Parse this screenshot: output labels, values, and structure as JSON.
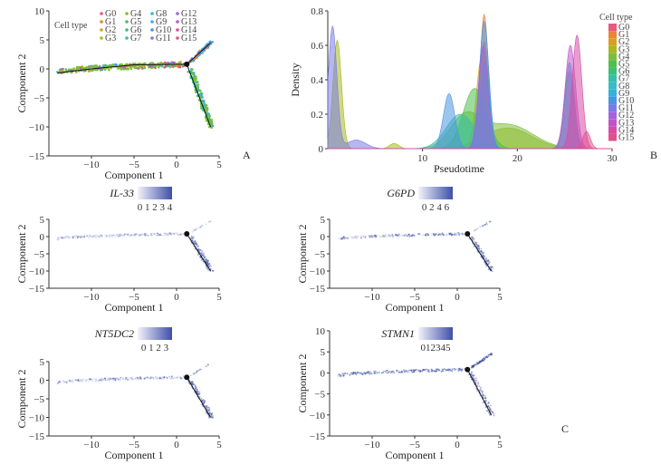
{
  "panels": {
    "a": "A",
    "b": "B",
    "c": "C"
  },
  "chart_data": [
    {
      "id": "A",
      "type": "scatter",
      "title": "",
      "xlabel": "Component 1",
      "ylabel": "Component 2",
      "xlim": [
        -15,
        5
      ],
      "ylim": [
        -15,
        10
      ],
      "xticks": [
        "-10",
        "-5",
        "0",
        "5"
      ],
      "yticks": [
        "10",
        "5",
        "0",
        "-5",
        "-10",
        "-15"
      ],
      "legend_title": "Cell type",
      "legend": [
        "G0",
        "G1",
        "G2",
        "G3",
        "G4",
        "G5",
        "G6",
        "G7",
        "G8",
        "G9",
        "G10",
        "G11",
        "G12",
        "G13",
        "G14",
        "G15"
      ],
      "trajectory": {
        "branch_point": [
          1.2,
          0.8
        ],
        "trunk": [
          [
            -14,
            -0.7
          ],
          [
            -10,
            0
          ],
          [
            -5,
            0.7
          ],
          [
            1.2,
            0.8
          ]
        ],
        "upper": [
          [
            1.2,
            0.8
          ],
          [
            4,
            4.5
          ]
        ],
        "lower": [
          [
            1.2,
            0.8
          ],
          [
            4,
            -10
          ]
        ]
      }
    },
    {
      "id": "B",
      "type": "area",
      "title": "",
      "xlabel": "Pseudotime",
      "ylabel": "Density",
      "xlim": [
        0,
        30
      ],
      "ylim": [
        0,
        0.8
      ],
      "xticks": [
        "10",
        "20",
        "30"
      ],
      "yticks": [
        "0.8",
        "0.6",
        "0.4",
        "0.2",
        "0"
      ],
      "legend_title": "Cell type",
      "series": [
        {
          "name": "G0",
          "peaks": [
            [
              16.5,
              0.62,
              0.5
            ]
          ]
        },
        {
          "name": "G1",
          "peaks": [
            [
              16.5,
              0.78,
              0.45
            ]
          ]
        },
        {
          "name": "G2",
          "peaks": [
            [
              16.3,
              0.55,
              0.6
            ]
          ]
        },
        {
          "name": "G3",
          "peaks": [
            [
              1,
              0.63,
              0.45
            ],
            [
              7,
              0.03,
              0.5
            ],
            [
              19,
              0.12,
              2.5
            ]
          ]
        },
        {
          "name": "G4",
          "peaks": [
            [
              14.5,
              0.18,
              1.6
            ],
            [
              19,
              0.14,
              2.6
            ]
          ]
        },
        {
          "name": "G5",
          "peaks": [
            [
              15.5,
              0.35,
              1.2
            ]
          ]
        },
        {
          "name": "G6",
          "peaks": [
            [
              25.5,
              0.45,
              0.5
            ]
          ]
        },
        {
          "name": "G7",
          "peaks": [
            [
              14,
              0.2,
              1.5
            ]
          ]
        },
        {
          "name": "G8",
          "peaks": [
            [
              16.6,
              0.5,
              0.5
            ]
          ]
        },
        {
          "name": "G9",
          "peaks": [
            [
              25.5,
              0.5,
              0.5
            ]
          ]
        },
        {
          "name": "G10",
          "peaks": [
            [
              12.8,
              0.32,
              0.6
            ],
            [
              16.5,
              0.74,
              0.5
            ]
          ]
        },
        {
          "name": "G11",
          "peaks": [
            [
              0.5,
              0.71,
              0.45
            ],
            [
              3,
              0.05,
              1
            ]
          ]
        },
        {
          "name": "G12",
          "peaks": [
            [
              16.4,
              0.6,
              0.5
            ]
          ]
        },
        {
          "name": "G13",
          "peaks": [
            [
              25.6,
              0.6,
              0.55
            ]
          ]
        },
        {
          "name": "G14",
          "peaks": [
            [
              26.3,
              0.66,
              0.5
            ]
          ]
        },
        {
          "name": "G15",
          "peaks": [
            [
              27.3,
              0.1,
              0.4
            ]
          ]
        }
      ]
    },
    {
      "id": "C1",
      "type": "scatter",
      "gene": "IL-33",
      "scale_ticks": "0 1 2 3 4",
      "xlabel": "Component 1",
      "ylabel": "Component 2",
      "xlim": [
        -15,
        5
      ],
      "ylim": [
        -15,
        5
      ],
      "xticks": [
        "-10",
        "-5",
        "0",
        "5"
      ],
      "yticks": [
        "5",
        "0",
        "-5",
        "-10",
        "-15"
      ]
    },
    {
      "id": "C2",
      "type": "scatter",
      "gene": "G6PD",
      "scale_ticks": "0 2 4 6",
      "xlabel": "Component 1",
      "ylabel": "Component 2",
      "xlim": [
        -15,
        5
      ],
      "ylim": [
        -15,
        5
      ],
      "xticks": [
        "-10",
        "-5",
        "0",
        "5"
      ],
      "yticks": [
        "5",
        "0",
        "-5",
        "-10",
        "-15"
      ]
    },
    {
      "id": "C3",
      "type": "scatter",
      "gene": "NT5DC2",
      "scale_ticks": "0 1 2 3",
      "xlabel": "Component 1",
      "ylabel": "Component 2",
      "xlim": [
        -15,
        5
      ],
      "ylim": [
        -15,
        5
      ],
      "xticks": [
        "-10",
        "-5",
        "0",
        "5"
      ],
      "yticks": [
        "5",
        "0",
        "-5",
        "-10",
        "-15"
      ]
    },
    {
      "id": "C4",
      "type": "scatter",
      "gene": "STMN1",
      "scale_ticks": "012345",
      "xlabel": "Component 1",
      "ylabel": "Component 2",
      "xlim": [
        -15,
        5
      ],
      "ylim": [
        -15,
        10
      ],
      "xticks": [
        "-10",
        "-5",
        "0",
        "5"
      ],
      "yticks": [
        "10",
        "5",
        "0",
        "-5",
        "-10",
        "-15"
      ]
    }
  ],
  "colors": {
    "G0": "#e8587f",
    "G1": "#e8843a",
    "G2": "#d8a020",
    "G3": "#a8b81e",
    "G4": "#7cbe3c",
    "G5": "#4fbf4c",
    "G6": "#3cbf7a",
    "G7": "#36bfa8",
    "G8": "#35bcc8",
    "G9": "#38b0dc",
    "G10": "#4a95e0",
    "G11": "#7a7ae6",
    "G12": "#a065dc",
    "G13": "#c055c8",
    "G14": "#d84aa8",
    "G15": "#e0508c",
    "gene_scale": "#3e4fa8"
  }
}
